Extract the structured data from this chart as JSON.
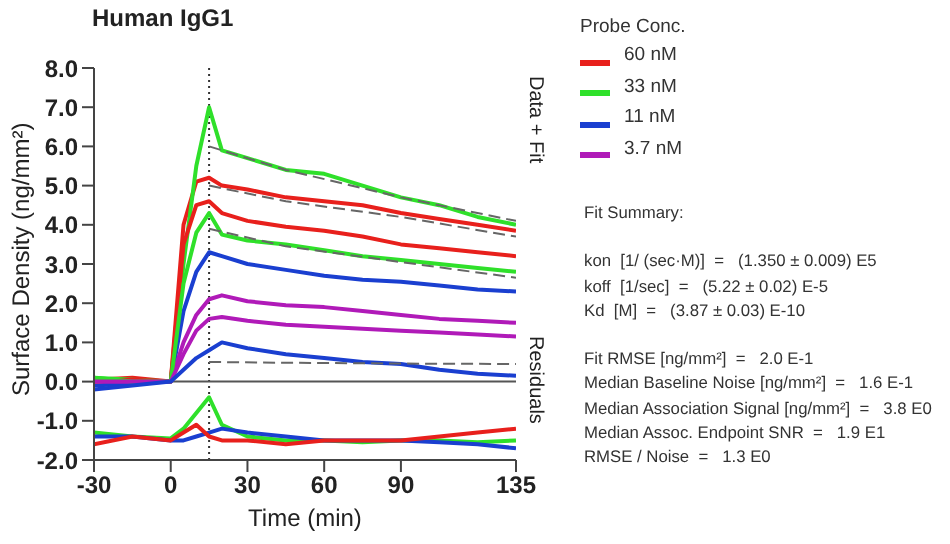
{
  "chart_data": {
    "type": "line",
    "title": "Human IgG1",
    "xlabel": "Time (min)",
    "ylabel": "Surface Density (ng/mm²)",
    "legend_title": "Probe Conc.",
    "legend": "right",
    "marker": "none",
    "line_style": "solid",
    "xlim": [
      -30,
      135
    ],
    "xticks": [
      -30,
      0,
      30,
      60,
      90,
      135
    ],
    "ylim": [
      -2,
      8
    ],
    "yticks": [
      {
        "value": -2,
        "label": "-2.0"
      },
      {
        "value": -1,
        "label": "-1.0"
      },
      {
        "value": 0,
        "label": "0.0"
      },
      {
        "value": 1,
        "label": "1.0"
      },
      {
        "value": 2,
        "label": "2.0"
      },
      {
        "value": 3,
        "label": "3.0"
      },
      {
        "value": 4,
        "label": "4.0"
      },
      {
        "value": 5,
        "label": "5.0"
      },
      {
        "value": 6,
        "label": "6.0"
      },
      {
        "value": 7,
        "label": "7.0"
      },
      {
        "value": 8,
        "label": "8.0"
      }
    ],
    "x": [
      -30,
      -15,
      0,
      5,
      10,
      15,
      20,
      30,
      45,
      60,
      75,
      90,
      105,
      120,
      135
    ],
    "ref_lines": [
      {
        "axis": "x",
        "value": 15,
        "color": "#333333",
        "line_style": "dotted"
      },
      {
        "axis": "y",
        "value": 0,
        "color": "#555555",
        "line_style": "solid"
      }
    ],
    "series": [
      {
        "name": "60 nM",
        "color": "#e8201c",
        "values": [
          0.05,
          0.1,
          0,
          4.0,
          5.1,
          5.2,
          5.0,
          4.9,
          4.7,
          4.6,
          4.5,
          4.3,
          4.15,
          4.0,
          3.85
        ]
      },
      {
        "name": "33 nM",
        "color": "#2fe02a",
        "values": [
          0.1,
          0.05,
          0,
          3.0,
          5.5,
          7.0,
          5.9,
          5.7,
          5.4,
          5.3,
          5.0,
          4.7,
          4.5,
          4.2,
          4.0
        ]
      },
      {
        "name": "11 nM",
        "color": "#1a3fd0",
        "values": [
          -0.1,
          -0.05,
          0,
          1.8,
          2.8,
          3.3,
          3.2,
          3.0,
          2.85,
          2.7,
          2.6,
          2.55,
          2.45,
          2.35,
          2.3
        ]
      },
      {
        "name": "3.7 nM",
        "color": "#b01ab8",
        "values": [
          0,
          0,
          0,
          1.0,
          1.7,
          2.1,
          2.2,
          2.05,
          1.95,
          1.9,
          1.8,
          1.7,
          1.6,
          1.55,
          1.5
        ]
      },
      {
        "color": "#e8201c",
        "values": [
          0,
          0.05,
          0,
          3.5,
          4.5,
          4.6,
          4.3,
          4.1,
          3.95,
          3.85,
          3.7,
          3.5,
          3.4,
          3.3,
          3.2
        ]
      },
      {
        "color": "#2fe02a",
        "values": [
          0.1,
          0,
          0,
          2.5,
          3.8,
          4.3,
          3.75,
          3.6,
          3.5,
          3.35,
          3.2,
          3.1,
          3.0,
          2.9,
          2.8
        ]
      },
      {
        "color": "#b01ab8",
        "values": [
          0,
          0,
          0,
          0.7,
          1.3,
          1.6,
          1.65,
          1.55,
          1.45,
          1.4,
          1.35,
          1.3,
          1.25,
          1.2,
          1.15
        ]
      },
      {
        "color": "#1a3fd0",
        "values": [
          -0.2,
          -0.1,
          0,
          0.3,
          0.6,
          0.8,
          1.0,
          0.85,
          0.7,
          0.6,
          0.5,
          0.45,
          0.3,
          0.2,
          0.15
        ]
      },
      {
        "color": "#666666",
        "line_style": "dashed",
        "x": [
          15,
          45,
          90,
          135
        ],
        "values": [
          6.0,
          5.4,
          4.7,
          4.1
        ]
      },
      {
        "color": "#666666",
        "line_style": "dashed",
        "x": [
          15,
          45,
          90,
          135
        ],
        "values": [
          5.0,
          4.6,
          4.2,
          3.7
        ]
      },
      {
        "color": "#666666",
        "line_style": "dashed",
        "x": [
          15,
          45,
          90,
          135
        ],
        "values": [
          3.9,
          3.45,
          3.05,
          2.65
        ]
      },
      {
        "color": "#666666",
        "line_style": "dashed",
        "x": [
          15,
          45,
          90,
          135
        ],
        "values": [
          0.5,
          0.48,
          0.46,
          0.45
        ]
      },
      {
        "color": "#2fe02a",
        "values": [
          -1.3,
          -1.4,
          -1.45,
          -1.2,
          -0.8,
          -0.4,
          -1.1,
          -1.4,
          -1.5,
          -1.5,
          -1.55,
          -1.5,
          -1.5,
          -1.55,
          -1.5
        ]
      },
      {
        "color": "#1a3fd0",
        "values": [
          -1.4,
          -1.4,
          -1.5,
          -1.5,
          -1.4,
          -1.3,
          -1.2,
          -1.3,
          -1.4,
          -1.5,
          -1.5,
          -1.5,
          -1.55,
          -1.6,
          -1.7
        ]
      },
      {
        "color": "#e8201c",
        "values": [
          -1.6,
          -1.4,
          -1.5,
          -1.3,
          -1.1,
          -1.4,
          -1.5,
          -1.5,
          -1.6,
          -1.5,
          -1.5,
          -1.5,
          -1.4,
          -1.3,
          -1.2
        ]
      }
    ],
    "annotations": [
      "Data + Fit",
      "Residuals",
      "Fit Summary:",
      "kon  [1/ (sec·M)]  =   (1.350 ± 0.009) E5",
      "koff  [1/sec]  =   (5.22 ± 0.02) E-5",
      "Kd  [M]  =   (3.87 ± 0.03) E-10",
      "Fit RMSE [ng/mm²]  =   2.0 E-1",
      "Median Baseline Noise [ng/mm²]  =   1.6 E-1",
      "Median Association Signal [ng/mm²]  =   3.8 E0",
      "Median Assoc. Endpoint SNR  =   1.9 E1",
      "RMSE / Noise  =   1.3 E0"
    ]
  }
}
